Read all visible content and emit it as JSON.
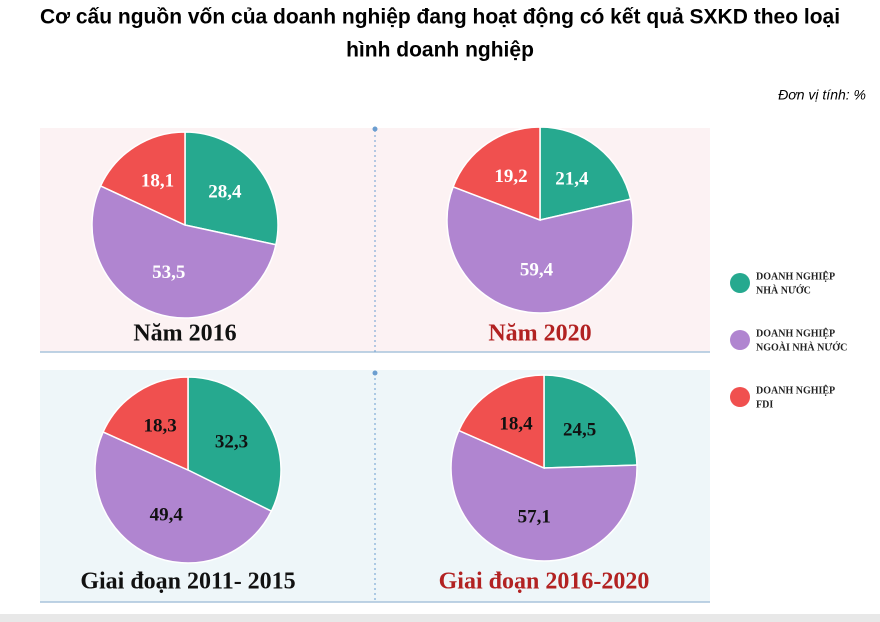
{
  "title": [
    "Cơ cấu nguồn vốn của doanh nghiệp đang hoạt động có kết quả SXKD theo loại",
    "hình doanh nghiệp"
  ],
  "unit": "Đơn vị tính: %",
  "legend": {
    "labels": [
      [
        "DOANH NGHIỆP",
        "NHÀ NƯỚC"
      ],
      [
        "DOANH NGHIỆP",
        "NGOÀI NHÀ NƯỚC"
      ],
      [
        "DOANH NGHIỆP",
        "FDI"
      ]
    ],
    "colors": [
      "#26a98f",
      "#b085d0",
      "#f0504f"
    ]
  },
  "chart_data": [
    {
      "type": "pie",
      "title": "Năm 2016",
      "title_color": "#111111",
      "label_color": "#ffffff",
      "values": [
        28.4,
        53.5,
        18.1
      ],
      "value_labels": [
        "28,4",
        "53,5",
        "18,1"
      ]
    },
    {
      "type": "pie",
      "title": "Năm 2020",
      "title_color": "#b22222",
      "label_color": "#ffffff",
      "values": [
        21.4,
        59.4,
        19.2
      ],
      "value_labels": [
        "21,4",
        "59,4",
        "19,2"
      ]
    },
    {
      "type": "pie",
      "title": "Giai đoạn 2011- 2015",
      "title_color": "#111111",
      "label_color": "#111111",
      "values": [
        32.3,
        49.4,
        18.3
      ],
      "value_labels": [
        "32,3",
        "49,4",
        "18,3"
      ]
    },
    {
      "type": "pie",
      "title": "Giai đoạn 2016-2020",
      "title_color": "#b22222",
      "label_color": "#111111",
      "values": [
        24.5,
        57.1,
        18.4
      ],
      "value_labels": [
        "24,5",
        "57,1",
        "18,4"
      ]
    }
  ]
}
